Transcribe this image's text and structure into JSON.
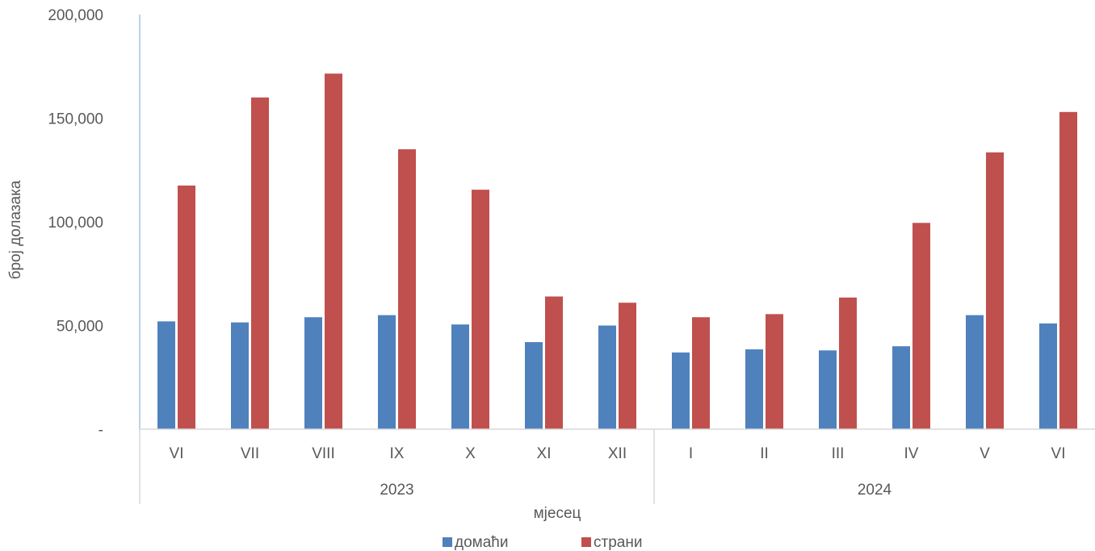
{
  "chart_data": {
    "type": "bar",
    "title": "",
    "xlabel": "мјесец",
    "ylabel": "број долазака",
    "ylim": [
      0,
      200000
    ],
    "yticks": [
      0,
      50000,
      100000,
      150000,
      200000
    ],
    "ytick_labels": [
      "-",
      "50,000",
      "100,000",
      "150,000",
      "200,000"
    ],
    "categories": [
      "VI",
      "VII",
      "VIII",
      "IX",
      "X",
      "XI",
      "XII",
      "I",
      "II",
      "III",
      "IV",
      "V",
      "VI"
    ],
    "groups": [
      {
        "label": "2023",
        "count": 7
      },
      {
        "label": "2024",
        "count": 6
      }
    ],
    "series": [
      {
        "name": "домаћи",
        "color": "#4F81BD",
        "values": [
          52000,
          51500,
          54000,
          55000,
          50500,
          42000,
          50000,
          37000,
          38500,
          38000,
          40000,
          55000,
          51000
        ]
      },
      {
        "name": "страни",
        "color": "#C0504D",
        "values": [
          117500,
          160000,
          171500,
          135000,
          115500,
          64000,
          61000,
          54000,
          55500,
          63500,
          99500,
          133500,
          153000
        ]
      }
    ],
    "legend_position": "bottom",
    "grid": false
  }
}
